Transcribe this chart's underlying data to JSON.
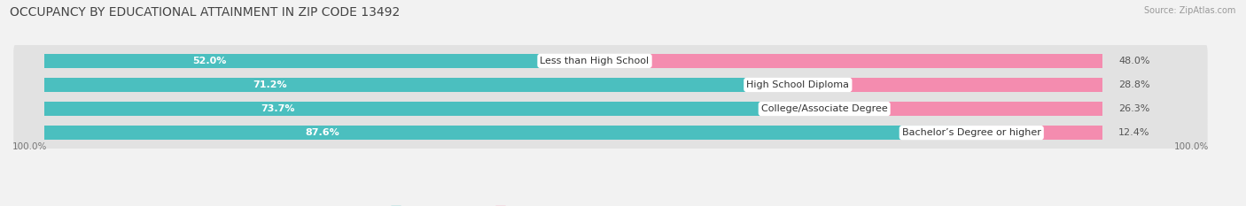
{
  "title": "OCCUPANCY BY EDUCATIONAL ATTAINMENT IN ZIP CODE 13492",
  "source": "Source: ZipAtlas.com",
  "categories": [
    "Less than High School",
    "High School Diploma",
    "College/Associate Degree",
    "Bachelor’s Degree or higher"
  ],
  "owner_pct": [
    52.0,
    71.2,
    73.7,
    87.6
  ],
  "renter_pct": [
    48.0,
    28.8,
    26.3,
    12.4
  ],
  "owner_color": "#4bbfbf",
  "renter_color": "#f48caf",
  "bg_color": "#f2f2f2",
  "row_bg_color": "#e2e2e2",
  "title_fontsize": 10,
  "label_fontsize": 8,
  "tick_fontsize": 7.5,
  "source_fontsize": 7,
  "bar_height": 0.58,
  "axis_label_left": "100.0%",
  "axis_label_right": "100.0%"
}
